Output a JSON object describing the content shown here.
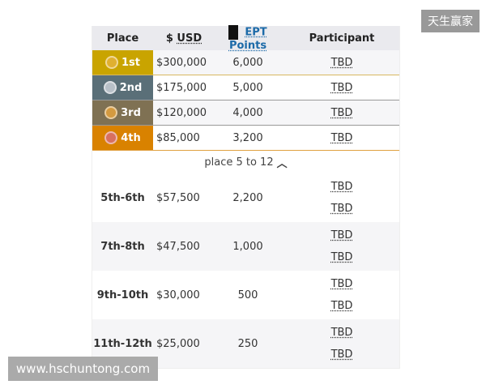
{
  "header": {
    "place": "Place",
    "usd_prefix": "$ ",
    "usd": "USD",
    "points": "EPT Points",
    "participant": "Participant"
  },
  "top_rows": [
    {
      "place": "1st",
      "usd": "$300,000",
      "points": "6,000",
      "participant": "TBD",
      "color": "#c9a400",
      "medal": "#e0b030"
    },
    {
      "place": "2nd",
      "usd": "$175,000",
      "points": "5,000",
      "participant": "TBD",
      "color": "#5a6f78",
      "medal": "#b8c0c8"
    },
    {
      "place": "3rd",
      "usd": "$120,000",
      "points": "4,000",
      "participant": "TBD",
      "color": "#7f7153",
      "medal": "#d49a40"
    },
    {
      "place": "4th",
      "usd": "$85,000",
      "points": "3,200",
      "participant": "TBD",
      "color": "#d98200",
      "medal": "#d87060"
    }
  ],
  "toggle": "place 5 to 12",
  "groups": [
    {
      "place": "5th-6th",
      "usd": "$57,500",
      "points": "2,200",
      "participants": [
        "TBD",
        "TBD"
      ]
    },
    {
      "place": "7th-8th",
      "usd": "$47,500",
      "points": "1,000",
      "participants": [
        "TBD",
        "TBD"
      ]
    },
    {
      "place": "9th-10th",
      "usd": "$30,000",
      "points": "500",
      "participants": [
        "TBD",
        "TBD"
      ]
    },
    {
      "place": "11th-12th",
      "usd": "$25,000",
      "points": "250",
      "participants": [
        "TBD",
        "TBD"
      ]
    }
  ],
  "watermark_top": "天生赢家",
  "watermark_bottom": "www.hschuntong.com"
}
